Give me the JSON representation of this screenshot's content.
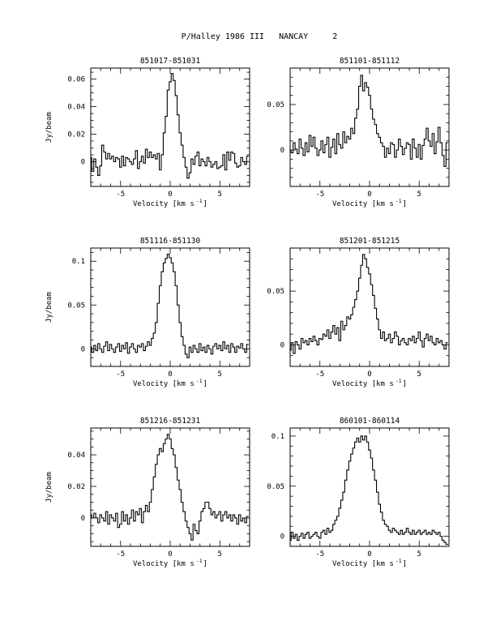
{
  "page_title": "P/Halley 1986 III   NANCAY     2",
  "common": {
    "xlabel_main": "Velocity [km s",
    "xlabel_exp": "-1",
    "xlabel_close": "]",
    "ylabel": "Jy/beam",
    "xlim": [
      -8,
      8
    ],
    "xticks": [
      -5,
      0,
      5
    ],
    "xminor_step": 1
  },
  "chart_data": [
    {
      "type": "line",
      "title": "851017-851031",
      "ylim": [
        -0.018,
        0.068
      ],
      "yticks": [
        0,
        0.02,
        0.04,
        0.06
      ],
      "ytick_labels": [
        "0",
        "0.02",
        "0.04",
        "0.06"
      ],
      "yminor_step": 0.005,
      "line_shape": "step",
      "show_ylabel": true,
      "x": [
        -8.0,
        -7.8,
        -7.6,
        -7.4,
        -7.2,
        -7.0,
        -6.8,
        -6.6,
        -6.4,
        -6.2,
        -6.0,
        -5.8,
        -5.6,
        -5.4,
        -5.2,
        -5.0,
        -4.8,
        -4.6,
        -4.4,
        -4.2,
        -4.0,
        -3.8,
        -3.6,
        -3.4,
        -3.2,
        -3.0,
        -2.8,
        -2.6,
        -2.4,
        -2.2,
        -2.0,
        -1.8,
        -1.6,
        -1.4,
        -1.2,
        -1.0,
        -0.8,
        -0.6,
        -0.4,
        -0.2,
        0.0,
        0.2,
        0.4,
        0.6,
        0.8,
        1.0,
        1.2,
        1.4,
        1.6,
        1.8,
        2.0,
        2.2,
        2.4,
        2.6,
        2.8,
        3.0,
        3.2,
        3.4,
        3.6,
        3.8,
        4.0,
        4.2,
        4.4,
        4.6,
        4.8,
        5.0,
        5.2,
        5.4,
        5.6,
        5.8,
        6.0,
        6.2,
        6.4,
        6.6,
        6.8,
        7.0,
        7.2,
        7.4,
        7.6,
        7.8
      ],
      "y": [
        0.003,
        -0.007,
        0.002,
        -0.004,
        -0.01,
        -0.003,
        0.012,
        0.007,
        0.002,
        0.006,
        0.002,
        0.004,
        0.0,
        0.003,
        0.002,
        -0.004,
        0.004,
        -0.003,
        0.003,
        0.002,
        0.0,
        -0.002,
        0.002,
        0.008,
        -0.005,
        0.0,
        0.004,
        -0.001,
        0.009,
        0.003,
        0.007,
        0.003,
        0.005,
        0.002,
        0.006,
        -0.006,
        0.005,
        0.021,
        0.033,
        0.052,
        0.058,
        0.064,
        0.059,
        0.048,
        0.034,
        0.021,
        0.012,
        0.003,
        -0.004,
        -0.012,
        -0.008,
        0.002,
        -0.002,
        0.004,
        0.007,
        -0.003,
        0.002,
        0.0,
        -0.003,
        0.003,
        0.0,
        -0.004,
        -0.002,
        0.0,
        -0.005,
        -0.004,
        -0.003,
        0.005,
        -0.006,
        0.007,
        0.001,
        0.007,
        0.006,
        -0.001,
        -0.004,
        -0.003,
        0.003,
        0.0,
        -0.002,
        0.004
      ]
    },
    {
      "type": "line",
      "title": "851101-851112",
      "ylim": [
        -0.04,
        0.09
      ],
      "yticks": [
        0,
        0.05
      ],
      "ytick_labels": [
        "0",
        "0.05"
      ],
      "yminor_step": 0.01,
      "line_shape": "step",
      "show_ylabel": false,
      "x": [
        -8.0,
        -7.8,
        -7.6,
        -7.4,
        -7.2,
        -7.0,
        -6.8,
        -6.6,
        -6.4,
        -6.2,
        -6.0,
        -5.8,
        -5.6,
        -5.4,
        -5.2,
        -5.0,
        -4.8,
        -4.6,
        -4.4,
        -4.2,
        -4.0,
        -3.8,
        -3.6,
        -3.4,
        -3.2,
        -3.0,
        -2.8,
        -2.6,
        -2.4,
        -2.2,
        -2.0,
        -1.8,
        -1.6,
        -1.4,
        -1.2,
        -1.0,
        -0.8,
        -0.6,
        -0.4,
        -0.2,
        0.0,
        0.2,
        0.4,
        0.6,
        0.8,
        1.0,
        1.2,
        1.4,
        1.6,
        1.8,
        2.0,
        2.2,
        2.4,
        2.6,
        2.8,
        3.0,
        3.2,
        3.4,
        3.6,
        3.8,
        4.0,
        4.2,
        4.4,
        4.6,
        4.8,
        5.0,
        5.2,
        5.4,
        5.6,
        5.8,
        6.0,
        6.2,
        6.4,
        6.6,
        6.8,
        7.0,
        7.2,
        7.4,
        7.6,
        7.8
      ],
      "y": [
        0.0,
        -0.003,
        0.008,
        0.001,
        -0.004,
        0.012,
        0.002,
        -0.006,
        0.008,
        -0.002,
        0.016,
        0.004,
        0.014,
        0.002,
        -0.006,
        0.0,
        0.01,
        -0.003,
        0.006,
        0.014,
        -0.008,
        0.003,
        0.012,
        -0.004,
        0.018,
        0.006,
        0.002,
        0.02,
        0.008,
        0.015,
        0.012,
        0.024,
        0.018,
        0.035,
        0.045,
        0.07,
        0.082,
        0.065,
        0.074,
        0.069,
        0.06,
        0.045,
        0.034,
        0.028,
        0.018,
        0.014,
        0.008,
        0.004,
        -0.008,
        0.002,
        -0.004,
        0.008,
        0.006,
        -0.008,
        0.0,
        0.012,
        0.004,
        -0.005,
        0.002,
        0.008,
        0.006,
        -0.01,
        0.012,
        0.002,
        -0.008,
        0.006,
        -0.01,
        0.005,
        0.012,
        0.024,
        0.01,
        0.004,
        0.018,
        -0.004,
        0.009,
        0.025,
        0.008,
        -0.006,
        -0.018,
        0.008
      ]
    },
    {
      "type": "line",
      "title": "851116-851130",
      "ylim": [
        -0.02,
        0.115
      ],
      "yticks": [
        0,
        0.05,
        0.1
      ],
      "ytick_labels": [
        "0",
        "0.05",
        "0.1"
      ],
      "yminor_step": 0.01,
      "line_shape": "step",
      "show_ylabel": true,
      "x": [
        -8.0,
        -7.8,
        -7.6,
        -7.4,
        -7.2,
        -7.0,
        -6.8,
        -6.6,
        -6.4,
        -6.2,
        -6.0,
        -5.8,
        -5.6,
        -5.4,
        -5.2,
        -5.0,
        -4.8,
        -4.6,
        -4.4,
        -4.2,
        -4.0,
        -3.8,
        -3.6,
        -3.4,
        -3.2,
        -3.0,
        -2.8,
        -2.6,
        -2.4,
        -2.2,
        -2.0,
        -1.8,
        -1.6,
        -1.4,
        -1.2,
        -1.0,
        -0.8,
        -0.6,
        -0.4,
        -0.2,
        0.0,
        0.2,
        0.4,
        0.6,
        0.8,
        1.0,
        1.2,
        1.4,
        1.6,
        1.8,
        2.0,
        2.2,
        2.4,
        2.6,
        2.8,
        3.0,
        3.2,
        3.4,
        3.6,
        3.8,
        4.0,
        4.2,
        4.4,
        4.6,
        4.8,
        5.0,
        5.2,
        5.4,
        5.6,
        5.8,
        6.0,
        6.2,
        6.4,
        6.6,
        6.8,
        7.0,
        7.2,
        7.4,
        7.6,
        7.8
      ],
      "y": [
        0.002,
        -0.004,
        0.004,
        -0.002,
        0.006,
        0.0,
        -0.004,
        0.003,
        0.008,
        -0.002,
        0.005,
        0.0,
        -0.004,
        0.002,
        0.006,
        -0.003,
        0.004,
        0.0,
        0.007,
        -0.005,
        0.002,
        0.006,
        0.0,
        -0.004,
        0.004,
        0.002,
        0.006,
        -0.002,
        0.003,
        0.008,
        0.004,
        0.012,
        0.018,
        0.03,
        0.052,
        0.072,
        0.088,
        0.098,
        0.103,
        0.108,
        0.104,
        0.098,
        0.088,
        0.072,
        0.05,
        0.03,
        0.014,
        0.004,
        -0.006,
        -0.01,
        0.002,
        -0.004,
        0.004,
        0.0,
        -0.004,
        0.006,
        -0.002,
        0.002,
        -0.004,
        0.004,
        0.0,
        -0.006,
        0.003,
        0.006,
        0.0,
        0.004,
        -0.002,
        0.008,
        0.0,
        0.004,
        -0.004,
        0.006,
        0.002,
        -0.004,
        0.003,
        0.001,
        0.006,
        0.0,
        -0.004,
        0.005
      ]
    },
    {
      "type": "line",
      "title": "851201-851215",
      "ylim": [
        -0.02,
        0.09
      ],
      "yticks": [
        0,
        0.05
      ],
      "ytick_labels": [
        "0",
        "0.05"
      ],
      "yminor_step": 0.01,
      "line_shape": "step",
      "show_ylabel": false,
      "x": [
        -8.0,
        -7.8,
        -7.6,
        -7.4,
        -7.2,
        -7.0,
        -6.8,
        -6.6,
        -6.4,
        -6.2,
        -6.0,
        -5.8,
        -5.6,
        -5.4,
        -5.2,
        -5.0,
        -4.8,
        -4.6,
        -4.4,
        -4.2,
        -4.0,
        -3.8,
        -3.6,
        -3.4,
        -3.2,
        -3.0,
        -2.8,
        -2.6,
        -2.4,
        -2.2,
        -2.0,
        -1.8,
        -1.6,
        -1.4,
        -1.2,
        -1.0,
        -0.8,
        -0.6,
        -0.4,
        -0.2,
        0.0,
        0.2,
        0.4,
        0.6,
        0.8,
        1.0,
        1.2,
        1.4,
        1.6,
        1.8,
        2.0,
        2.2,
        2.4,
        2.6,
        2.8,
        3.0,
        3.2,
        3.4,
        3.6,
        3.8,
        4.0,
        4.2,
        4.4,
        4.6,
        4.8,
        5.0,
        5.2,
        5.4,
        5.6,
        5.8,
        6.0,
        6.2,
        6.4,
        6.6,
        6.8,
        7.0,
        7.2,
        7.4,
        7.6,
        7.8
      ],
      "y": [
        -0.005,
        0.002,
        -0.008,
        0.003,
        0.0,
        -0.004,
        0.006,
        0.002,
        0.004,
        0.0,
        0.006,
        0.003,
        0.008,
        0.004,
        0.0,
        0.006,
        0.005,
        0.01,
        0.008,
        0.014,
        0.006,
        0.012,
        0.018,
        0.01,
        0.016,
        0.004,
        0.022,
        0.014,
        0.018,
        0.026,
        0.024,
        0.028,
        0.035,
        0.042,
        0.05,
        0.062,
        0.074,
        0.084,
        0.08,
        0.072,
        0.066,
        0.056,
        0.046,
        0.034,
        0.024,
        0.014,
        0.006,
        0.012,
        0.004,
        0.006,
        0.01,
        0.002,
        0.006,
        0.012,
        0.008,
        0.0,
        0.004,
        0.006,
        0.002,
        0.0,
        0.006,
        0.004,
        0.008,
        0.002,
        0.006,
        0.012,
        0.004,
        -0.002,
        0.006,
        0.01,
        0.004,
        0.008,
        0.002,
        0.0,
        0.006,
        0.002,
        0.004,
        0.0,
        -0.004,
        0.002
      ]
    },
    {
      "type": "line",
      "title": "851216-851231",
      "ylim": [
        -0.018,
        0.057
      ],
      "yticks": [
        0,
        0.02,
        0.04
      ],
      "ytick_labels": [
        "0",
        "0.02",
        "0.04"
      ],
      "yminor_step": 0.005,
      "line_shape": "step",
      "show_ylabel": true,
      "x": [
        -8.0,
        -7.8,
        -7.6,
        -7.4,
        -7.2,
        -7.0,
        -6.8,
        -6.6,
        -6.4,
        -6.2,
        -6.0,
        -5.8,
        -5.6,
        -5.4,
        -5.2,
        -5.0,
        -4.8,
        -4.6,
        -4.4,
        -4.2,
        -4.0,
        -3.8,
        -3.6,
        -3.4,
        -3.2,
        -3.0,
        -2.8,
        -2.6,
        -2.4,
        -2.2,
        -2.0,
        -1.8,
        -1.6,
        -1.4,
        -1.2,
        -1.0,
        -0.8,
        -0.6,
        -0.4,
        -0.2,
        0.0,
        0.2,
        0.4,
        0.6,
        0.8,
        1.0,
        1.2,
        1.4,
        1.6,
        1.8,
        2.0,
        2.2,
        2.4,
        2.6,
        2.8,
        3.0,
        3.2,
        3.4,
        3.6,
        3.8,
        4.0,
        4.2,
        4.4,
        4.6,
        4.8,
        5.0,
        5.2,
        5.4,
        5.6,
        5.8,
        6.0,
        6.2,
        6.4,
        6.6,
        6.8,
        7.0,
        7.2,
        7.4,
        7.6,
        7.8
      ],
      "y": [
        0.002,
        0.0,
        0.003,
        0.0,
        -0.003,
        0.002,
        0.0,
        -0.002,
        0.004,
        -0.004,
        0.002,
        0.0,
        -0.002,
        0.003,
        -0.006,
        -0.004,
        0.004,
        -0.002,
        0.002,
        -0.004,
        0.0,
        0.005,
        -0.002,
        0.004,
        0.002,
        0.006,
        -0.003,
        0.004,
        0.008,
        0.004,
        0.01,
        0.018,
        0.026,
        0.034,
        0.04,
        0.044,
        0.042,
        0.047,
        0.05,
        0.053,
        0.05,
        0.044,
        0.04,
        0.032,
        0.024,
        0.018,
        0.01,
        0.004,
        -0.002,
        -0.006,
        -0.01,
        -0.014,
        -0.004,
        -0.008,
        -0.01,
        -0.002,
        0.004,
        0.006,
        0.01,
        0.01,
        0.006,
        0.002,
        0.004,
        0.0,
        0.002,
        0.004,
        -0.002,
        0.002,
        0.004,
        0.0,
        0.002,
        -0.002,
        0.002,
        0.0,
        -0.004,
        0.002,
        -0.002,
        0.0,
        -0.003,
        0.001
      ]
    },
    {
      "type": "line",
      "title": "860101-860114",
      "ylim": [
        -0.01,
        0.108
      ],
      "yticks": [
        0,
        0.05,
        0.1
      ],
      "ytick_labels": [
        "0",
        "0.05",
        "0.1"
      ],
      "yminor_step": 0.01,
      "line_shape": "step",
      "show_ylabel": false,
      "x": [
        -8.0,
        -7.8,
        -7.6,
        -7.4,
        -7.2,
        -7.0,
        -6.8,
        -6.6,
        -6.4,
        -6.2,
        -6.0,
        -5.8,
        -5.6,
        -5.4,
        -5.2,
        -5.0,
        -4.8,
        -4.6,
        -4.4,
        -4.2,
        -4.0,
        -3.8,
        -3.6,
        -3.4,
        -3.2,
        -3.0,
        -2.8,
        -2.6,
        -2.4,
        -2.2,
        -2.0,
        -1.8,
        -1.6,
        -1.4,
        -1.2,
        -1.0,
        -0.8,
        -0.6,
        -0.4,
        -0.2,
        0.0,
        0.2,
        0.4,
        0.6,
        0.8,
        1.0,
        1.2,
        1.4,
        1.6,
        1.8,
        2.0,
        2.2,
        2.4,
        2.6,
        2.8,
        3.0,
        3.2,
        3.4,
        3.6,
        3.8,
        4.0,
        4.2,
        4.4,
        4.6,
        4.8,
        5.0,
        5.2,
        5.4,
        5.6,
        5.8,
        6.0,
        6.2,
        6.4,
        6.6,
        6.8,
        7.0,
        7.2,
        7.4,
        7.6,
        7.8
      ],
      "y": [
        -0.004,
        0.004,
        -0.002,
        0.002,
        -0.004,
        0.0,
        0.003,
        -0.002,
        0.002,
        0.004,
        -0.002,
        0.0,
        0.002,
        0.004,
        0.0,
        -0.002,
        0.004,
        0.006,
        0.002,
        0.008,
        0.004,
        0.006,
        0.012,
        0.016,
        0.02,
        0.028,
        0.036,
        0.044,
        0.056,
        0.066,
        0.075,
        0.082,
        0.088,
        0.094,
        0.098,
        0.094,
        0.1,
        0.096,
        0.1,
        0.094,
        0.086,
        0.078,
        0.066,
        0.056,
        0.044,
        0.032,
        0.024,
        0.016,
        0.012,
        0.01,
        0.006,
        0.004,
        0.008,
        0.006,
        0.004,
        0.002,
        0.006,
        0.002,
        0.004,
        0.008,
        0.004,
        0.002,
        0.006,
        0.002,
        0.004,
        0.006,
        0.002,
        0.004,
        0.006,
        0.002,
        0.004,
        0.002,
        0.006,
        0.004,
        0.002,
        0.004,
        0.0,
        -0.004,
        -0.006,
        -0.008
      ]
    }
  ]
}
